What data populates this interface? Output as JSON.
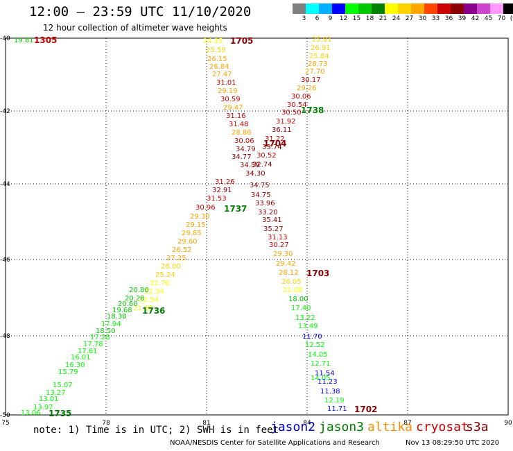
{
  "title": "12:00 – 23:59 UTC 11/10/2020",
  "subtitle": "12 hour collection of altimeter wave heights",
  "colorbar": {
    "labels": [
      "3",
      "6",
      "9",
      "12",
      "15",
      "18",
      "21",
      "24",
      "27",
      "30",
      "33",
      "36",
      "39",
      "42",
      "45",
      "70",
      "(ft)"
    ],
    "colors": [
      "#808080",
      "#00ffff",
      "#00b0ff",
      "#0000ff",
      "#00ff00",
      "#00c800",
      "#008000",
      "#ffff00",
      "#ffd200",
      "#ffa500",
      "#ff4500",
      "#cc0000",
      "#8b0000",
      "#8b008b",
      "#cc44cc",
      "#ff99ff",
      "#000000"
    ]
  },
  "map": {
    "lon_range": [
      75,
      90
    ],
    "lat_range": [
      -50,
      -40
    ],
    "x_ticks": [
      "75",
      "78",
      "81",
      "84",
      "87",
      "90"
    ],
    "y_ticks": [
      "-40",
      "-42",
      "-44",
      "-46",
      "-48",
      "-50"
    ]
  },
  "footer": {
    "note": "note: 1) Time is in UTC; 2) SWH is in feet",
    "satellites": [
      {
        "name": "jason2",
        "color": "#0000cc"
      },
      {
        "name": "jason3",
        "color": "#008000"
      },
      {
        "name": "altika",
        "color": "#ff8c00"
      },
      {
        "name": "cryosat",
        "color": "#cc0000"
      },
      {
        "name": "s3a",
        "color": "#8b0000"
      }
    ],
    "credit": "NOAA/NESDIS Center for Satellite Applications and Research",
    "timestamp": "Nov 13 08:29:50 UTC 2020"
  },
  "time_labels": [
    {
      "text": "1305",
      "color": "#cc0000"
    },
    {
      "text": "1705",
      "color": "#8b0000"
    },
    {
      "text": "1738",
      "color": "#008000"
    },
    {
      "text": "1704",
      "color": "#8b0000"
    },
    {
      "text": "1737",
      "color": "#008000"
    },
    {
      "text": "1703",
      "color": "#8b0000"
    },
    {
      "text": "1736",
      "color": "#008000"
    },
    {
      "text": "1702",
      "color": "#8b0000"
    },
    {
      "text": "1735",
      "color": "#008000"
    }
  ],
  "points": [
    {
      "v": "19.81",
      "c": "#00c800"
    },
    {
      "v": "24.35",
      "c": "#ffff00"
    },
    {
      "v": "25.59",
      "c": "#ffd200"
    },
    {
      "v": "26.15",
      "c": "#ffa500"
    },
    {
      "v": "26.84",
      "c": "#ffa500"
    },
    {
      "v": "27.47",
      "c": "#ffa500"
    },
    {
      "v": "31.01",
      "c": "#cc0000"
    },
    {
      "v": "29.19",
      "c": "#ffa500"
    },
    {
      "v": "30.59",
      "c": "#cc0000"
    },
    {
      "v": "29.47",
      "c": "#ffa500"
    },
    {
      "v": "31.16",
      "c": "#cc0000"
    },
    {
      "v": "31.48",
      "c": "#cc0000"
    },
    {
      "v": "28.86",
      "c": "#ffa500"
    },
    {
      "v": "30.06",
      "c": "#cc0000"
    },
    {
      "v": "25.81",
      "c": "#ffd200"
    },
    {
      "v": "26.91",
      "c": "#ffd200"
    },
    {
      "v": "25.84",
      "c": "#ffd200"
    },
    {
      "v": "28.73",
      "c": "#ffa500"
    },
    {
      "v": "27.70",
      "c": "#ffa500"
    },
    {
      "v": "30.17",
      "c": "#cc0000"
    },
    {
      "v": "29.26",
      "c": "#ffa500"
    },
    {
      "v": "30.06",
      "c": "#cc0000"
    },
    {
      "v": "30.54",
      "c": "#cc0000"
    },
    {
      "v": "30.50",
      "c": "#cc0000"
    },
    {
      "v": "31.92",
      "c": "#cc0000"
    },
    {
      "v": "36.11",
      "c": "#8b0000"
    },
    {
      "v": "31.22",
      "c": "#cc0000"
    },
    {
      "v": "33.74",
      "c": "#8b0000"
    },
    {
      "v": "30.52",
      "c": "#cc0000"
    },
    {
      "v": "32.74",
      "c": "#8b0000"
    },
    {
      "v": "34.79",
      "c": "#8b0000"
    },
    {
      "v": "34.77",
      "c": "#8b0000"
    },
    {
      "v": "34.59",
      "c": "#8b0000"
    },
    {
      "v": "34.30",
      "c": "#8b0000"
    },
    {
      "v": "31.26",
      "c": "#cc0000"
    },
    {
      "v": "34.75",
      "c": "#8b0000"
    },
    {
      "v": "32.91",
      "c": "#8b0000"
    },
    {
      "v": "34.75",
      "c": "#8b0000"
    },
    {
      "v": "31.53",
      "c": "#cc0000"
    },
    {
      "v": "33.96",
      "c": "#8b0000"
    },
    {
      "v": "30.96",
      "c": "#cc0000"
    },
    {
      "v": "33.20",
      "c": "#8b0000"
    },
    {
      "v": "29.30",
      "c": "#ffa500"
    },
    {
      "v": "29.15",
      "c": "#ffa500"
    },
    {
      "v": "35.41",
      "c": "#8b0000"
    },
    {
      "v": "29.85",
      "c": "#ffa500"
    },
    {
      "v": "35.27",
      "c": "#8b0000"
    },
    {
      "v": "29.60",
      "c": "#ffa500"
    },
    {
      "v": "31.13",
      "c": "#cc0000"
    },
    {
      "v": "26.52",
      "c": "#ffa500"
    },
    {
      "v": "30.27",
      "c": "#cc0000"
    },
    {
      "v": "27.25",
      "c": "#ffa500"
    },
    {
      "v": "26.00",
      "c": "#ffd200"
    },
    {
      "v": "29.30",
      "c": "#ffa500"
    },
    {
      "v": "25.24",
      "c": "#ffd200"
    },
    {
      "v": "29.42",
      "c": "#ffa500"
    },
    {
      "v": "22.76",
      "c": "#ffff00"
    },
    {
      "v": "22.34",
      "c": "#ffff00"
    },
    {
      "v": "28.12",
      "c": "#ffa500"
    },
    {
      "v": "22.54",
      "c": "#ffff00"
    },
    {
      "v": "26.05",
      "c": "#ffd200"
    },
    {
      "v": "21.98",
      "c": "#ffff00"
    },
    {
      "v": "21.08",
      "c": "#ffff00"
    },
    {
      "v": "20.80",
      "c": "#00c800"
    },
    {
      "v": "18.00",
      "c": "#00c800"
    },
    {
      "v": "20.28",
      "c": "#00c800"
    },
    {
      "v": "20.60",
      "c": "#00c800"
    },
    {
      "v": "17.40",
      "c": "#00ff00"
    },
    {
      "v": "19.68",
      "c": "#00c800"
    },
    {
      "v": "13.22",
      "c": "#00ff00"
    },
    {
      "v": "18.38",
      "c": "#00c800"
    },
    {
      "v": "13.49",
      "c": "#00ff00"
    },
    {
      "v": "17.94",
      "c": "#00ff00"
    },
    {
      "v": "18.50",
      "c": "#00c800"
    },
    {
      "v": "11.70",
      "c": "#0000ff"
    },
    {
      "v": "17.28",
      "c": "#00ff00"
    },
    {
      "v": "17.78",
      "c": "#00ff00"
    },
    {
      "v": "12.52",
      "c": "#00ff00"
    },
    {
      "v": "17.61",
      "c": "#00ff00"
    },
    {
      "v": "14.05",
      "c": "#00ff00"
    },
    {
      "v": "16.01",
      "c": "#00ff00"
    },
    {
      "v": "12.71",
      "c": "#00ff00"
    },
    {
      "v": "16.30",
      "c": "#00ff00"
    },
    {
      "v": "11.54",
      "c": "#0000ff"
    },
    {
      "v": "15.79",
      "c": "#00ff00"
    },
    {
      "v": "14.05",
      "c": "#00ff00"
    },
    {
      "v": "11.23",
      "c": "#0000ff"
    },
    {
      "v": "15.07",
      "c": "#00ff00"
    },
    {
      "v": "13.27",
      "c": "#00ff00"
    },
    {
      "v": "11.38",
      "c": "#0000ff"
    },
    {
      "v": "13.01",
      "c": "#00ff00"
    },
    {
      "v": "12.19",
      "c": "#00ff00"
    },
    {
      "v": "13.97",
      "c": "#00ff00"
    },
    {
      "v": "11.71",
      "c": "#0000ff"
    },
    {
      "v": "13.06",
      "c": "#00ff00"
    }
  ]
}
